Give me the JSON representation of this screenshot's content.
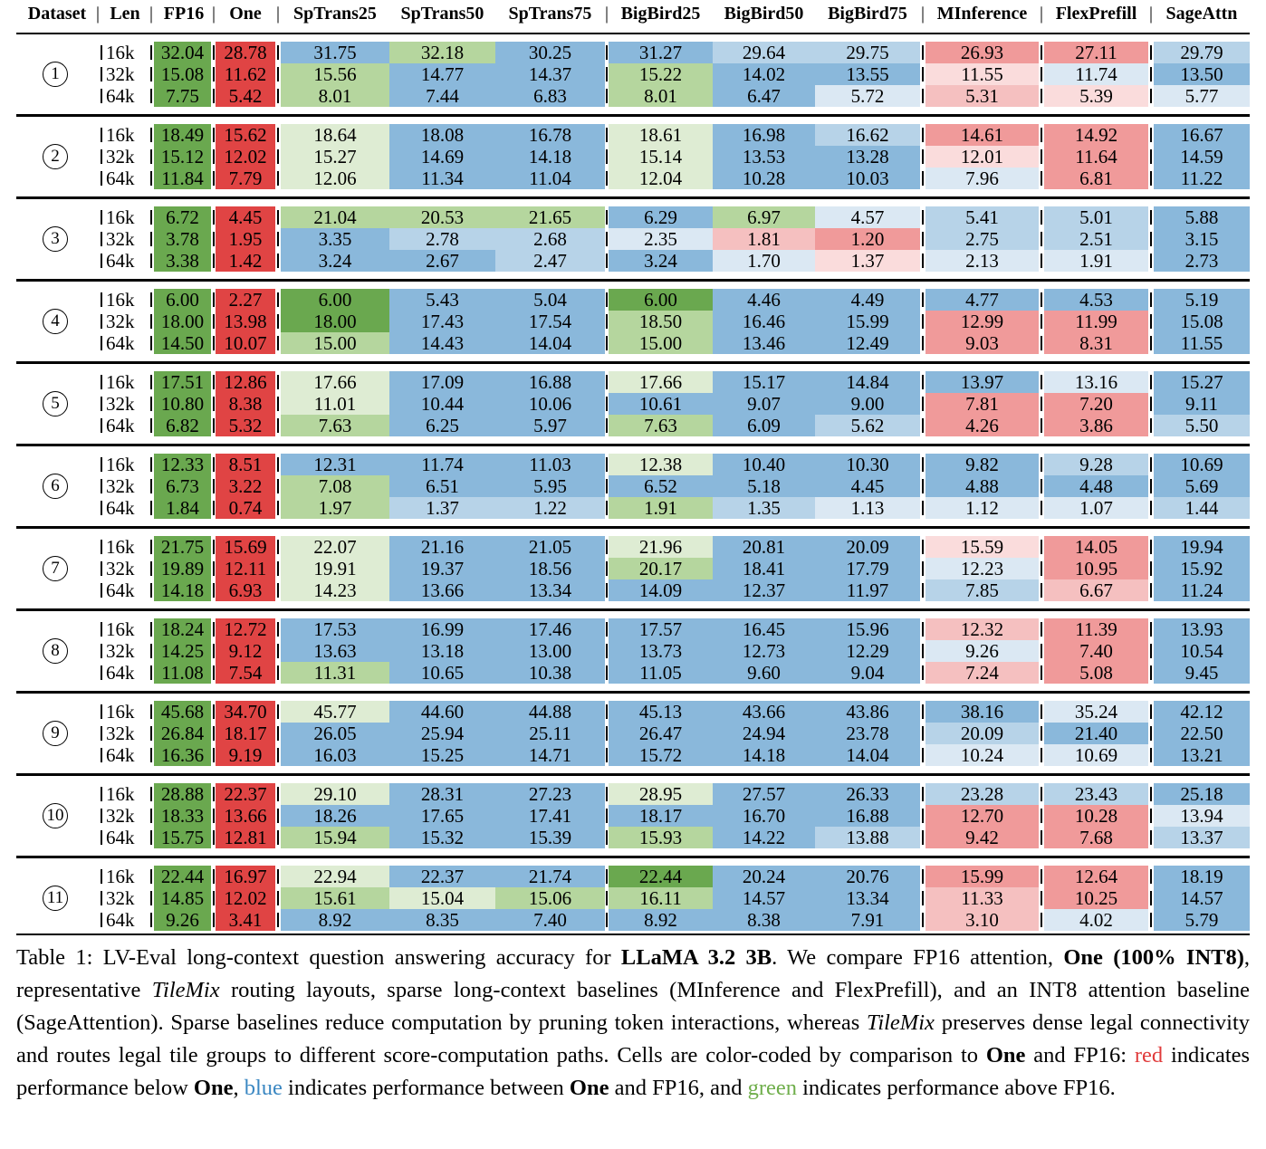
{
  "headers": [
    "Dataset",
    "Len",
    "FP16",
    "One",
    "SpTrans25",
    "SpTrans50",
    "SpTrans75",
    "BigBird25",
    "BigBird50",
    "BigBird75",
    "MInference",
    "FlexPrefill",
    "SageAttn"
  ],
  "header_sep": "|",
  "colors": {
    "G3": "#6aa84f",
    "G2": "#b5d69e",
    "G1": "#deecd3",
    "B3": "#8ab8db",
    "B2": "#b7d3e8",
    "B1": "#dbe8f3",
    "R3": "#f09a9a",
    "R2": "#f5c0c0",
    "R1": "#fadcdc",
    "FP": "#6aa84f",
    "ON": "#e04444"
  },
  "groups": [
    {
      "id": "1",
      "rows": [
        {
          "len": "16k",
          "fp16": "32.04",
          "one": "28.78",
          "vals": [
            "31.75",
            "32.18",
            "30.25",
            "31.27",
            "29.64",
            "29.75",
            "26.93",
            "27.11",
            "29.79"
          ],
          "c": [
            "B3",
            "G2",
            "B3",
            "B3",
            "B2",
            "B2",
            "R3",
            "R3",
            "B2"
          ]
        },
        {
          "len": "32k",
          "fp16": "15.08",
          "one": "11.62",
          "vals": [
            "15.56",
            "14.77",
            "14.37",
            "15.22",
            "14.02",
            "13.55",
            "11.55",
            "11.74",
            "13.50"
          ],
          "c": [
            "G2",
            "B3",
            "B3",
            "G2",
            "B3",
            "B3",
            "R1",
            "B1",
            "B3"
          ]
        },
        {
          "len": "64k",
          "fp16": "7.75",
          "one": "5.42",
          "vals": [
            "8.01",
            "7.44",
            "6.83",
            "8.01",
            "6.47",
            "5.72",
            "5.31",
            "5.39",
            "5.77"
          ],
          "c": [
            "G2",
            "B3",
            "B3",
            "G2",
            "B3",
            "B1",
            "R2",
            "R1",
            "B1"
          ]
        }
      ]
    },
    {
      "id": "2",
      "rows": [
        {
          "len": "16k",
          "fp16": "18.49",
          "one": "15.62",
          "vals": [
            "18.64",
            "18.08",
            "16.78",
            "18.61",
            "16.98",
            "16.62",
            "14.61",
            "14.92",
            "16.67"
          ],
          "c": [
            "G1",
            "B3",
            "B3",
            "G1",
            "B3",
            "B2",
            "R3",
            "R3",
            "B3"
          ]
        },
        {
          "len": "32k",
          "fp16": "15.12",
          "one": "12.02",
          "vals": [
            "15.27",
            "14.69",
            "14.18",
            "15.14",
            "13.53",
            "13.28",
            "12.01",
            "11.64",
            "14.59"
          ],
          "c": [
            "G1",
            "B3",
            "B3",
            "G1",
            "B3",
            "B3",
            "R1",
            "R3",
            "B3"
          ]
        },
        {
          "len": "64k",
          "fp16": "11.84",
          "one": "7.79",
          "vals": [
            "12.06",
            "11.34",
            "11.04",
            "12.04",
            "10.28",
            "10.03",
            "7.96",
            "6.81",
            "11.22"
          ],
          "c": [
            "G1",
            "B3",
            "B3",
            "G1",
            "B3",
            "B3",
            "B1",
            "R3",
            "B3"
          ]
        }
      ]
    },
    {
      "id": "3",
      "rows": [
        {
          "len": "16k",
          "fp16": "6.72",
          "one": "4.45",
          "vals": [
            "21.04",
            "20.53",
            "21.65",
            "6.29",
            "6.97",
            "4.57",
            "5.41",
            "5.01",
            "5.88"
          ],
          "c": [
            "G2",
            "G2",
            "G2",
            "B3",
            "G2",
            "B1",
            "B2",
            "B2",
            "B3"
          ]
        },
        {
          "len": "32k",
          "fp16": "3.78",
          "one": "1.95",
          "vals": [
            "3.35",
            "2.78",
            "2.68",
            "2.35",
            "1.81",
            "1.20",
            "2.75",
            "2.51",
            "3.15"
          ],
          "c": [
            "B3",
            "B2",
            "B2",
            "B1",
            "R2",
            "R3",
            "B2",
            "B2",
            "B3"
          ]
        },
        {
          "len": "64k",
          "fp16": "3.38",
          "one": "1.42",
          "vals": [
            "3.24",
            "2.67",
            "2.47",
            "3.24",
            "1.70",
            "1.37",
            "2.13",
            "1.91",
            "2.73"
          ],
          "c": [
            "B3",
            "B3",
            "B2",
            "B3",
            "B1",
            "R1",
            "B1",
            "B1",
            "B3"
          ]
        }
      ]
    },
    {
      "id": "4",
      "rows": [
        {
          "len": "16k",
          "fp16": "6.00",
          "one": "2.27",
          "vals": [
            "6.00",
            "5.43",
            "5.04",
            "6.00",
            "4.46",
            "4.49",
            "4.77",
            "4.53",
            "5.19"
          ],
          "c": [
            "G3",
            "B3",
            "B3",
            "G3",
            "B3",
            "B3",
            "B3",
            "B3",
            "B3"
          ]
        },
        {
          "len": "32k",
          "fp16": "18.00",
          "one": "13.98",
          "vals": [
            "18.00",
            "17.43",
            "17.54",
            "18.50",
            "16.46",
            "15.99",
            "12.99",
            "11.99",
            "15.08"
          ],
          "c": [
            "G3",
            "B3",
            "B3",
            "G2",
            "B3",
            "B3",
            "R3",
            "R3",
            "B3"
          ]
        },
        {
          "len": "64k",
          "fp16": "14.50",
          "one": "10.07",
          "vals": [
            "15.00",
            "14.43",
            "14.04",
            "15.00",
            "13.46",
            "12.49",
            "9.03",
            "8.31",
            "11.55"
          ],
          "c": [
            "G2",
            "B3",
            "B3",
            "G2",
            "B3",
            "B3",
            "R3",
            "R3",
            "B3"
          ]
        }
      ]
    },
    {
      "id": "5",
      "rows": [
        {
          "len": "16k",
          "fp16": "17.51",
          "one": "12.86",
          "vals": [
            "17.66",
            "17.09",
            "16.88",
            "17.66",
            "15.17",
            "14.84",
            "13.97",
            "13.16",
            "15.27"
          ],
          "c": [
            "G1",
            "B3",
            "B3",
            "G1",
            "B3",
            "B3",
            "B3",
            "B1",
            "B3"
          ]
        },
        {
          "len": "32k",
          "fp16": "10.80",
          "one": "8.38",
          "vals": [
            "11.01",
            "10.44",
            "10.06",
            "10.61",
            "9.07",
            "9.00",
            "7.81",
            "7.20",
            "9.11"
          ],
          "c": [
            "G1",
            "B3",
            "B3",
            "B3",
            "B3",
            "B3",
            "R3",
            "R3",
            "B3"
          ]
        },
        {
          "len": "64k",
          "fp16": "6.82",
          "one": "5.32",
          "vals": [
            "7.63",
            "6.25",
            "5.97",
            "7.63",
            "6.09",
            "5.62",
            "4.26",
            "3.86",
            "5.50"
          ],
          "c": [
            "G2",
            "B3",
            "B3",
            "G2",
            "B3",
            "B2",
            "R3",
            "R3",
            "B2"
          ]
        }
      ]
    },
    {
      "id": "6",
      "rows": [
        {
          "len": "16k",
          "fp16": "12.33",
          "one": "8.51",
          "vals": [
            "12.31",
            "11.74",
            "11.03",
            "12.38",
            "10.40",
            "10.30",
            "9.82",
            "9.28",
            "10.69"
          ],
          "c": [
            "B3",
            "B3",
            "B3",
            "G1",
            "B3",
            "B3",
            "B3",
            "B2",
            "B3"
          ]
        },
        {
          "len": "32k",
          "fp16": "6.73",
          "one": "3.22",
          "vals": [
            "7.08",
            "6.51",
            "5.95",
            "6.52",
            "5.18",
            "4.45",
            "4.88",
            "4.48",
            "5.69"
          ],
          "c": [
            "G2",
            "B3",
            "B3",
            "B3",
            "B3",
            "B3",
            "B3",
            "B3",
            "B3"
          ]
        },
        {
          "len": "64k",
          "fp16": "1.84",
          "one": "0.74",
          "vals": [
            "1.97",
            "1.37",
            "1.22",
            "1.91",
            "1.35",
            "1.13",
            "1.12",
            "1.07",
            "1.44"
          ],
          "c": [
            "G2",
            "B2",
            "B2",
            "G2",
            "B2",
            "B1",
            "B1",
            "B1",
            "B2"
          ]
        }
      ]
    },
    {
      "id": "7",
      "rows": [
        {
          "len": "16k",
          "fp16": "21.75",
          "one": "15.69",
          "vals": [
            "22.07",
            "21.16",
            "21.05",
            "21.96",
            "20.81",
            "20.09",
            "15.59",
            "14.05",
            "19.94"
          ],
          "c": [
            "G1",
            "B3",
            "B3",
            "G1",
            "B3",
            "B3",
            "R1",
            "R3",
            "B3"
          ]
        },
        {
          "len": "32k",
          "fp16": "19.89",
          "one": "12.11",
          "vals": [
            "19.91",
            "19.37",
            "18.56",
            "20.17",
            "18.41",
            "17.79",
            "12.23",
            "10.95",
            "15.92"
          ],
          "c": [
            "G1",
            "B3",
            "B3",
            "G2",
            "B3",
            "B3",
            "B1",
            "R3",
            "B3"
          ]
        },
        {
          "len": "64k",
          "fp16": "14.18",
          "one": "6.93",
          "vals": [
            "14.23",
            "13.66",
            "13.34",
            "14.09",
            "12.37",
            "11.97",
            "7.85",
            "6.67",
            "11.24"
          ],
          "c": [
            "G1",
            "B3",
            "B3",
            "B3",
            "B3",
            "B3",
            "B2",
            "R2",
            "B3"
          ]
        }
      ]
    },
    {
      "id": "8",
      "rows": [
        {
          "len": "16k",
          "fp16": "18.24",
          "one": "12.72",
          "vals": [
            "17.53",
            "16.99",
            "17.46",
            "17.57",
            "16.45",
            "15.96",
            "12.32",
            "11.39",
            "13.93"
          ],
          "c": [
            "B3",
            "B3",
            "B3",
            "B3",
            "B3",
            "B3",
            "R2",
            "R3",
            "B3"
          ]
        },
        {
          "len": "32k",
          "fp16": "14.25",
          "one": "9.12",
          "vals": [
            "13.63",
            "13.18",
            "13.00",
            "13.73",
            "12.73",
            "12.29",
            "9.26",
            "7.40",
            "10.54"
          ],
          "c": [
            "B3",
            "B3",
            "B3",
            "B3",
            "B3",
            "B3",
            "B1",
            "R3",
            "B3"
          ]
        },
        {
          "len": "64k",
          "fp16": "11.08",
          "one": "7.54",
          "vals": [
            "11.31",
            "10.65",
            "10.38",
            "11.05",
            "9.60",
            "9.04",
            "7.24",
            "5.08",
            "9.45"
          ],
          "c": [
            "G2",
            "B3",
            "B3",
            "B3",
            "B3",
            "B3",
            "R2",
            "R3",
            "B3"
          ]
        }
      ]
    },
    {
      "id": "9",
      "rows": [
        {
          "len": "16k",
          "fp16": "45.68",
          "one": "34.70",
          "vals": [
            "45.77",
            "44.60",
            "44.88",
            "45.13",
            "43.66",
            "43.86",
            "38.16",
            "35.24",
            "42.12"
          ],
          "c": [
            "G1",
            "B3",
            "B3",
            "B3",
            "B3",
            "B3",
            "B3",
            "B1",
            "B3"
          ]
        },
        {
          "len": "32k",
          "fp16": "26.84",
          "one": "18.17",
          "vals": [
            "26.05",
            "25.94",
            "25.11",
            "26.47",
            "24.94",
            "23.78",
            "20.09",
            "21.40",
            "22.50"
          ],
          "c": [
            "B3",
            "B3",
            "B3",
            "B3",
            "B3",
            "B3",
            "B2",
            "B3",
            "B3"
          ]
        },
        {
          "len": "64k",
          "fp16": "16.36",
          "one": "9.19",
          "vals": [
            "16.03",
            "15.25",
            "14.71",
            "15.72",
            "14.18",
            "14.04",
            "10.24",
            "10.69",
            "13.21"
          ],
          "c": [
            "B3",
            "B3",
            "B3",
            "B3",
            "B3",
            "B3",
            "B1",
            "B1",
            "B3"
          ]
        }
      ]
    },
    {
      "id": "10",
      "rows": [
        {
          "len": "16k",
          "fp16": "28.88",
          "one": "22.37",
          "vals": [
            "29.10",
            "28.31",
            "27.23",
            "28.95",
            "27.57",
            "26.33",
            "23.28",
            "23.43",
            "25.18"
          ],
          "c": [
            "G1",
            "B3",
            "B3",
            "G1",
            "B3",
            "B3",
            "B2",
            "B2",
            "B3"
          ]
        },
        {
          "len": "32k",
          "fp16": "18.33",
          "one": "13.66",
          "vals": [
            "18.26",
            "17.65",
            "17.41",
            "18.17",
            "16.70",
            "16.88",
            "12.70",
            "10.28",
            "13.94"
          ],
          "c": [
            "B3",
            "B3",
            "B3",
            "B3",
            "B3",
            "B3",
            "R3",
            "R3",
            "B1"
          ]
        },
        {
          "len": "64k",
          "fp16": "15.75",
          "one": "12.81",
          "vals": [
            "15.94",
            "15.32",
            "15.39",
            "15.93",
            "14.22",
            "13.88",
            "9.42",
            "7.68",
            "13.37"
          ],
          "c": [
            "G2",
            "B3",
            "B3",
            "G2",
            "B3",
            "B2",
            "R3",
            "R3",
            "B2"
          ]
        }
      ]
    },
    {
      "id": "11",
      "rows": [
        {
          "len": "16k",
          "fp16": "22.44",
          "one": "16.97",
          "vals": [
            "22.94",
            "22.37",
            "21.74",
            "22.44",
            "20.24",
            "20.76",
            "15.99",
            "12.64",
            "18.19"
          ],
          "c": [
            "G1",
            "B3",
            "B3",
            "G3",
            "B3",
            "B3",
            "R3",
            "R3",
            "B3"
          ]
        },
        {
          "len": "32k",
          "fp16": "14.85",
          "one": "12.02",
          "vals": [
            "15.61",
            "15.04",
            "15.06",
            "16.11",
            "14.57",
            "13.34",
            "11.33",
            "10.25",
            "14.57"
          ],
          "c": [
            "G2",
            "G1",
            "G2",
            "G2",
            "B3",
            "B3",
            "R2",
            "R3",
            "B3"
          ]
        },
        {
          "len": "64k",
          "fp16": "9.26",
          "one": "3.41",
          "vals": [
            "8.92",
            "8.35",
            "7.40",
            "8.92",
            "8.38",
            "7.91",
            "3.10",
            "4.02",
            "5.79"
          ],
          "c": [
            "B3",
            "B3",
            "B3",
            "B3",
            "B3",
            "B3",
            "R2",
            "B1",
            "B3"
          ]
        }
      ]
    }
  ],
  "caption": {
    "label": "Table 1:",
    "t1": "LV-Eval long-context question answering accuracy for",
    "model": "LLaMA 3.2 3B",
    "t2": ". We compare FP16 attention,",
    "one_full": "One (100% INT8)",
    "t3": ", representative",
    "tilemix": "TileMix",
    "t4": "routing layouts, sparse long-context baselines (MInference and FlexPrefill), and an INT8 attention baseline (SageAttention). Sparse baselines reduce computation by pruning token interactions, whereas",
    "t5": "preserves dense legal connectivity and routes legal tile groups to different score-computation paths. Cells are color-coded by comparison to",
    "one": "One",
    "t6": "and FP16:",
    "red": "red",
    "t7": "indicates performance below",
    "t8": ",",
    "blue": "blue",
    "t9": "indicates performance between",
    "t10": "and FP16, and",
    "green": "green",
    "t11": "indicates performance above FP16."
  }
}
